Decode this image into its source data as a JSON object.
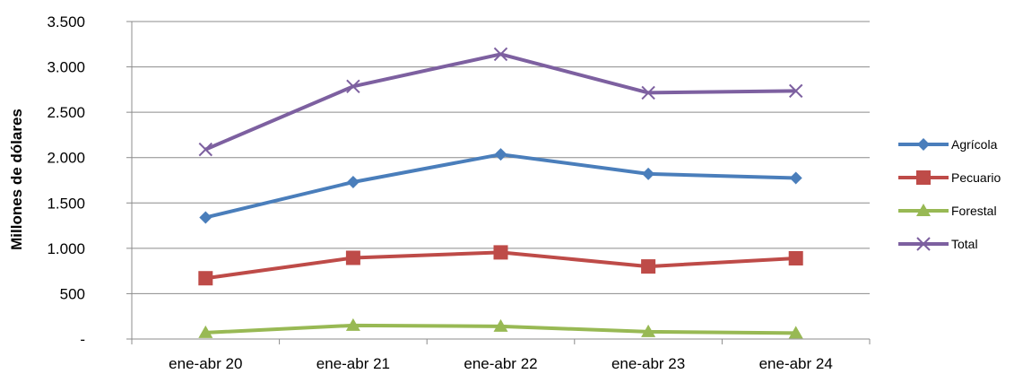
{
  "chart_data": {
    "type": "line",
    "title": "",
    "xlabel": "",
    "ylabel": "Millones de dólares",
    "categories": [
      "ene-abr 20",
      "ene-abr 21",
      "ene-abr 22",
      "ene-abr 23",
      "ene-abr 24"
    ],
    "ylim": [
      0,
      3500
    ],
    "yticks": [
      0,
      500,
      1000,
      1500,
      2000,
      2500,
      3000,
      3500
    ],
    "ytick_labels": [
      "-",
      "500",
      "1.000",
      "1.500",
      "2.000",
      "2.500",
      "3.000",
      "3.500"
    ],
    "grid": true,
    "legend_position": "right",
    "series": [
      {
        "name": "Agrícola",
        "color": "#4a7ebb",
        "marker": "diamond",
        "values": [
          1340,
          1730,
          2035,
          1820,
          1775
        ]
      },
      {
        "name": "Pecuario",
        "color": "#be4b48",
        "marker": "square",
        "values": [
          670,
          895,
          955,
          800,
          890
        ]
      },
      {
        "name": "Forestal",
        "color": "#98b954",
        "marker": "triangle",
        "values": [
          70,
          150,
          140,
          80,
          65
        ]
      },
      {
        "name": "Total",
        "color": "#7d60a0",
        "marker": "x",
        "values": [
          2090,
          2785,
          3140,
          2715,
          2735
        ]
      }
    ]
  }
}
